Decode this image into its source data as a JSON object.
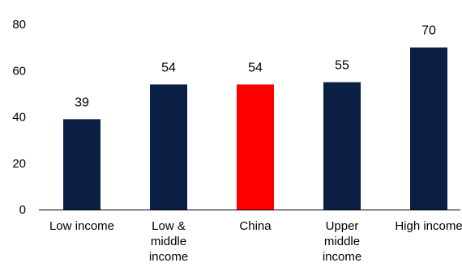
{
  "chart_data": {
    "type": "bar",
    "title": "",
    "xlabel": "",
    "ylabel": "",
    "ylim": [
      0,
      80
    ],
    "yticks": [
      0,
      20,
      40,
      60,
      80
    ],
    "grid": false,
    "categories": [
      "Low income",
      "Low & middle income",
      "China",
      "Upper middle income",
      "High income"
    ],
    "category_lines": [
      [
        "Low income"
      ],
      [
        "Low &",
        "middle",
        "income"
      ],
      [
        "China"
      ],
      [
        "Upper",
        "middle",
        "income"
      ],
      [
        "High income"
      ]
    ],
    "values": [
      39,
      54,
      54,
      55,
      70
    ],
    "data_labels": [
      "39",
      "54",
      "54",
      "55",
      "70"
    ],
    "colors": {
      "default_bar": "#0b1f45",
      "highlight_bar": "#ff0000",
      "axis": "#000000"
    },
    "highlight_index": 2
  }
}
